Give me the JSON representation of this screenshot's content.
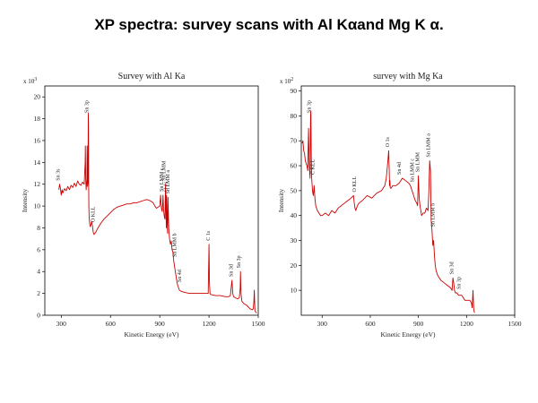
{
  "slide_title": "XP spectra: survey scans with Al Kαand Mg K α.",
  "chart_data": [
    {
      "type": "line",
      "title": "Survey with Al Ka",
      "xlabel": "Kinetic Energy (eV)",
      "ylabel": "Intensity",
      "multiplier": "x 10",
      "multiplier_exp": "3",
      "xlim": [
        200,
        1500
      ],
      "ylim": [
        0,
        21
      ],
      "xticks": [
        300,
        600,
        900,
        1200,
        1500
      ],
      "yticks": [
        0,
        2,
        4,
        6,
        8,
        10,
        12,
        14,
        16,
        18,
        20
      ],
      "grid": false,
      "color": "#cc0000",
      "series": [
        {
          "x": [
            285,
            290,
            295,
            300,
            305,
            310,
            320,
            330,
            340,
            350,
            360,
            370,
            380,
            390,
            400,
            410,
            420,
            430,
            440,
            446,
            447,
            449,
            452,
            456,
            458,
            460,
            463,
            465,
            466,
            467,
            468,
            470,
            474,
            478,
            485,
            490,
            495,
            500,
            505,
            510,
            520,
            540,
            560,
            580,
            600,
            620,
            640,
            660,
            680,
            700,
            720,
            740,
            760,
            780,
            800,
            820,
            840,
            860,
            870,
            880,
            890,
            900,
            905,
            910,
            915,
            918,
            920,
            923,
            928,
            932,
            935,
            938,
            940,
            942,
            945,
            948,
            950,
            955,
            960,
            965,
            970,
            975,
            980,
            985,
            990,
            995,
            1000,
            1005,
            1010,
            1015,
            1020,
            1030,
            1050,
            1080,
            1110,
            1140,
            1170,
            1195,
            1200,
            1203,
            1206,
            1210,
            1240,
            1270,
            1300,
            1320,
            1330,
            1335,
            1340,
            1345,
            1350,
            1360,
            1375,
            1385,
            1390,
            1392,
            1395,
            1400,
            1410,
            1430,
            1450,
            1465,
            1470,
            1473,
            1476,
            1480,
            1490
          ],
          "y": [
            11.5,
            12.0,
            11.6,
            11.0,
            11.5,
            11.2,
            11.6,
            11.4,
            11.8,
            11.5,
            11.9,
            11.7,
            12.1,
            11.8,
            12.3,
            12.0,
            11.9,
            12.2,
            12.0,
            14.0,
            15.5,
            12.5,
            11.5,
            12.4,
            15.5,
            11.8,
            12.2,
            18.5,
            17.0,
            12.0,
            10.0,
            9.0,
            8.3,
            8.1,
            8.6,
            8.2,
            7.6,
            7.4,
            7.5,
            7.6,
            7.9,
            8.4,
            8.8,
            9.1,
            9.4,
            9.7,
            9.9,
            10.0,
            10.1,
            10.2,
            10.2,
            10.3,
            10.3,
            10.4,
            10.5,
            10.6,
            10.5,
            10.3,
            10.0,
            9.8,
            9.9,
            10.0,
            11.0,
            9.8,
            9.5,
            10.2,
            11.0,
            9.7,
            9.0,
            8.8,
            12.0,
            9.5,
            8.0,
            11.0,
            8.5,
            7.5,
            10.8,
            8.0,
            7.0,
            6.5,
            6.8,
            6.0,
            5.8,
            5.0,
            4.5,
            4.0,
            3.5,
            3.0,
            2.7,
            2.5,
            2.3,
            2.2,
            2.1,
            2.0,
            2.0,
            2.0,
            2.0,
            2.0,
            6.5,
            3.0,
            2.0,
            1.9,
            1.8,
            1.8,
            1.7,
            1.7,
            1.8,
            2.5,
            3.2,
            2.0,
            1.7,
            1.6,
            1.5,
            1.6,
            2.5,
            4.0,
            2.0,
            1.3,
            1.1,
            0.9,
            0.6,
            0.5,
            0.6,
            1.2,
            2.3,
            0.4,
            0.2
          ]
        }
      ],
      "annotations": [
        {
          "text": "Sn 3s",
          "x": 290
        },
        {
          "text": "Sn 3p",
          "x": 466
        },
        {
          "text": "O KLL",
          "x": 502
        },
        {
          "text": "Sn LMM c",
          "x": 920
        },
        {
          "text": "Sn LMM",
          "x": 935
        },
        {
          "text": "O 1s",
          "x": 947
        },
        {
          "text": "Sn LMM a",
          "x": 960
        },
        {
          "text": "Sn LMM b",
          "x": 1000
        },
        {
          "text": "Sn 4d",
          "x": 1030
        },
        {
          "text": "C 1s",
          "x": 1205
        },
        {
          "text": "Sn 3d",
          "x": 1345
        },
        {
          "text": "Sn 3p",
          "x": 1392
        }
      ]
    },
    {
      "type": "line",
      "title": "survey with Mg Ka",
      "xlabel": "Kinetic Energy (eV)",
      "ylabel": "Intensity",
      "multiplier": "x 10",
      "multiplier_exp": "2",
      "xlim": [
        170,
        1500
      ],
      "ylim": [
        0,
        92
      ],
      "xticks": [
        300,
        600,
        900,
        1200,
        1500
      ],
      "yticks": [
        10,
        20,
        30,
        40,
        50,
        60,
        70,
        80,
        90
      ],
      "grid": false,
      "color": "#cc0000",
      "series": [
        {
          "x": [
            175,
            180,
            185,
            190,
            195,
            200,
            205,
            210,
            215,
            220,
            225,
            228,
            230,
            232,
            235,
            240,
            245,
            250,
            255,
            260,
            270,
            280,
            290,
            300,
            320,
            340,
            360,
            380,
            400,
            420,
            440,
            460,
            480,
            495,
            500,
            505,
            510,
            515,
            520,
            530,
            550,
            580,
            610,
            640,
            670,
            690,
            700,
            710,
            715,
            718,
            720,
            722,
            725,
            730,
            740,
            760,
            780,
            800,
            820,
            840,
            850,
            860,
            870,
            880,
            890,
            895,
            900,
            905,
            910,
            915,
            920,
            930,
            940,
            950,
            960,
            965,
            970,
            975,
            980,
            985,
            990,
            995,
            1000,
            1005,
            1010,
            1020,
            1040,
            1060,
            1080,
            1100,
            1110,
            1115,
            1120,
            1125,
            1130,
            1140,
            1150,
            1160,
            1170,
            1180,
            1190,
            1200,
            1210,
            1220,
            1230,
            1235,
            1240,
            1245,
            1250
          ],
          "y": [
            69,
            70,
            66,
            65,
            62,
            61,
            60,
            58,
            75,
            60,
            55,
            80,
            82,
            65,
            55,
            50,
            48,
            52,
            47,
            44,
            42,
            41,
            40,
            40,
            41,
            40,
            42,
            41,
            43,
            44,
            45,
            46,
            47,
            48,
            45,
            43,
            42,
            43,
            44,
            45,
            46,
            48,
            47,
            49,
            50,
            52,
            55,
            62,
            66,
            58,
            52,
            54,
            51,
            51,
            52,
            52,
            53,
            55,
            54,
            53,
            52,
            50,
            48,
            46,
            45,
            44,
            56,
            47,
            44,
            42,
            40,
            41,
            41,
            43,
            42,
            50,
            62,
            58,
            38,
            34,
            28,
            30,
            24,
            20,
            18,
            16,
            14,
            13,
            12,
            11,
            10,
            15,
            13,
            10,
            9,
            9,
            8,
            8,
            8,
            7,
            6,
            6,
            6,
            6,
            5,
            3,
            10,
            2,
            1
          ]
        }
      ],
      "annotations": [
        {
          "text": "Sn 3p",
          "x": 228
        },
        {
          "text": "C KLL",
          "x": 250
        },
        {
          "text": "O KLL",
          "x": 510
        },
        {
          "text": "O 1s",
          "x": 718
        },
        {
          "text": "Sn 4d",
          "x": 790
        },
        {
          "text": "Sn LMM c",
          "x": 872
        },
        {
          "text": "Sn LMM",
          "x": 905
        },
        {
          "text": "Sn LMM a",
          "x": 972
        },
        {
          "text": "Sn LMM b",
          "x": 1000
        },
        {
          "text": "Sn 3d",
          "x": 1118
        },
        {
          "text": "Sn 3p",
          "x": 1162
        }
      ]
    }
  ]
}
